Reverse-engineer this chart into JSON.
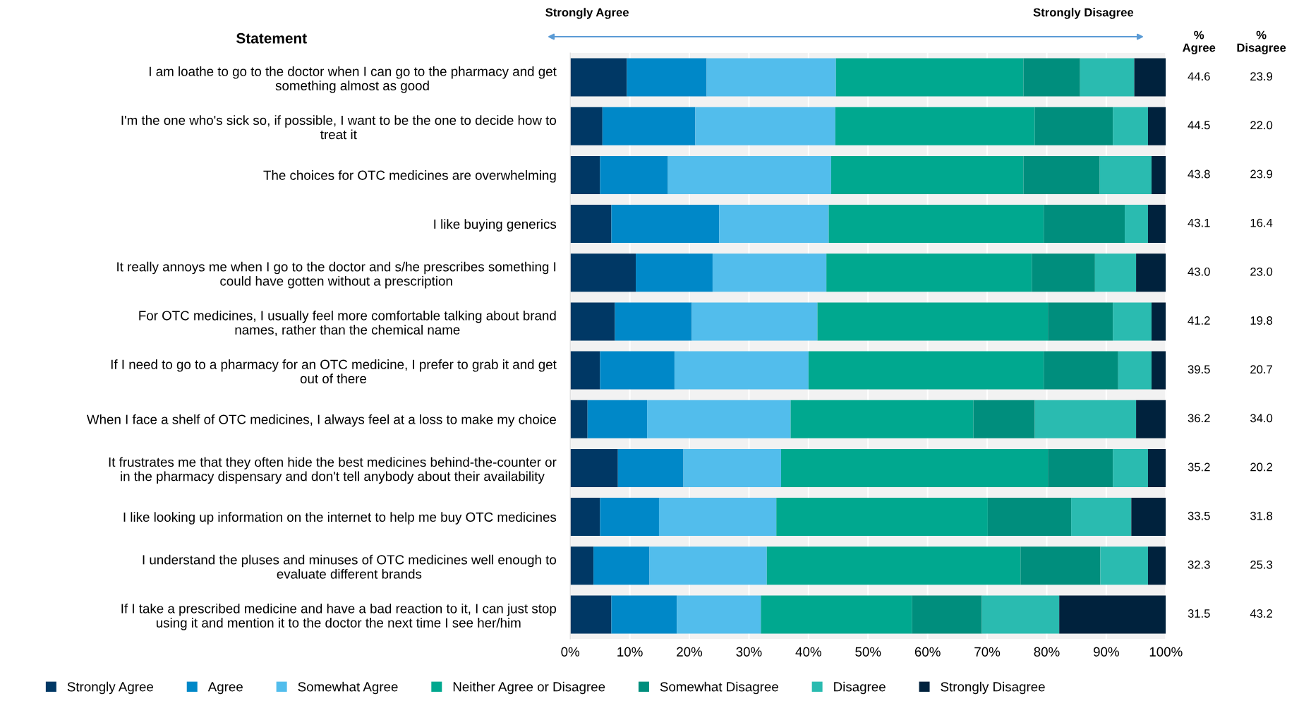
{
  "chart_data": {
    "type": "bar",
    "orientation": "horizontal",
    "stacked": true,
    "categories": [
      "I am loathe to go to the doctor when I can go to the pharmacy and get\nsomething almost as good",
      "I'm the one who's sick so, if possible, I want to be the one to decide how to\ntreat it",
      "The choices for OTC medicines are overwhelming",
      "I like buying generics",
      "It really annoys me when I go to the doctor and s/he prescribes something I\ncould have gotten without a prescription",
      "For OTC medicines, I usually feel more comfortable talking about brand\nnames, rather than the chemical name",
      "If I need to go to a pharmacy for an OTC medicine, I prefer to grab it and get\nout of there",
      "When I face a shelf of OTC medicines, I always feel at a loss to make my choice",
      "It frustrates me that they often hide the best medicines behind-the-counter or\nin the pharmacy dispensary and don't tell anybody about their availability",
      "I like looking up information on the internet to help me buy OTC medicines",
      "I understand the pluses and minuses of OTC medicines well enough to\nevaluate different brands",
      "If I take a prescribed medicine and have a bad reaction to it, I can just stop\nusing it and mention it to the doctor the next time I see her/him"
    ],
    "series": [
      {
        "name": "Strongly Agree",
        "color": "#003865",
        "values": [
          9.5,
          5.4,
          5.0,
          6.9,
          11.0,
          7.5,
          5.0,
          2.9,
          8.0,
          5.0,
          3.9,
          6.9
        ]
      },
      {
        "name": "Agree",
        "color": "#0088c8",
        "values": [
          13.4,
          15.6,
          11.4,
          18.1,
          12.9,
          12.9,
          12.5,
          10.0,
          11.0,
          9.9,
          9.4,
          11.0
        ]
      },
      {
        "name": "Somewhat Agree",
        "color": "#52bdec",
        "values": [
          21.7,
          23.5,
          27.4,
          18.4,
          19.1,
          21.1,
          22.5,
          24.1,
          16.4,
          19.7,
          19.7,
          14.1
        ]
      },
      {
        "name": "Neither Agree or Disagree",
        "color": "#00a88f",
        "values": [
          31.5,
          33.5,
          32.3,
          36.1,
          34.5,
          38.7,
          39.5,
          30.7,
          44.8,
          35.5,
          42.6,
          25.4
        ]
      },
      {
        "name": "Somewhat Disagree",
        "color": "#008e7d",
        "values": [
          9.5,
          13.1,
          12.8,
          13.6,
          10.6,
          10.9,
          12.5,
          10.3,
          10.9,
          14.0,
          13.4,
          11.7
        ]
      },
      {
        "name": "Disagree",
        "color": "#2abbb0",
        "values": [
          9.1,
          5.9,
          8.7,
          3.9,
          6.9,
          6.5,
          5.6,
          17.0,
          5.9,
          10.1,
          8.0,
          13.0
        ]
      },
      {
        "name": "Strongly Disagree",
        "color": "#00223d",
        "values": [
          5.3,
          3.0,
          2.4,
          3.0,
          5.0,
          2.4,
          2.4,
          5.0,
          3.0,
          5.8,
          3.0,
          17.9
        ]
      }
    ],
    "xlim": [
      0,
      100
    ],
    "xticks": [
      {
        "value": 0,
        "label": "0%"
      },
      {
        "value": 10,
        "label": "10%"
      },
      {
        "value": 20,
        "label": "20%"
      },
      {
        "value": 30,
        "label": "30%"
      },
      {
        "value": 40,
        "label": "40%"
      },
      {
        "value": 50,
        "label": "50%"
      },
      {
        "value": 60,
        "label": "60%"
      },
      {
        "value": 70,
        "label": "70%"
      },
      {
        "value": 80,
        "label": "80%"
      },
      {
        "value": 90,
        "label": "90%"
      },
      {
        "value": 100,
        "label": "100%"
      }
    ],
    "grid": "x",
    "legend": "bottom",
    "annotations": [
      "Statement",
      "Strongly Agree",
      "Strongly Disagree",
      "%\nAgree",
      "%\nDisagree",
      "44.6",
      "23.9",
      "44.5",
      "22.0",
      "43.8",
      "23.9",
      "43.1",
      "16.4",
      "43.0",
      "23.0",
      "41.2",
      "19.8",
      "39.5",
      "20.7",
      "36.2",
      "34.0",
      "35.2",
      "20.2",
      "33.5",
      "31.8",
      "32.3",
      "25.3",
      "31.5",
      "43.2"
    ]
  }
}
